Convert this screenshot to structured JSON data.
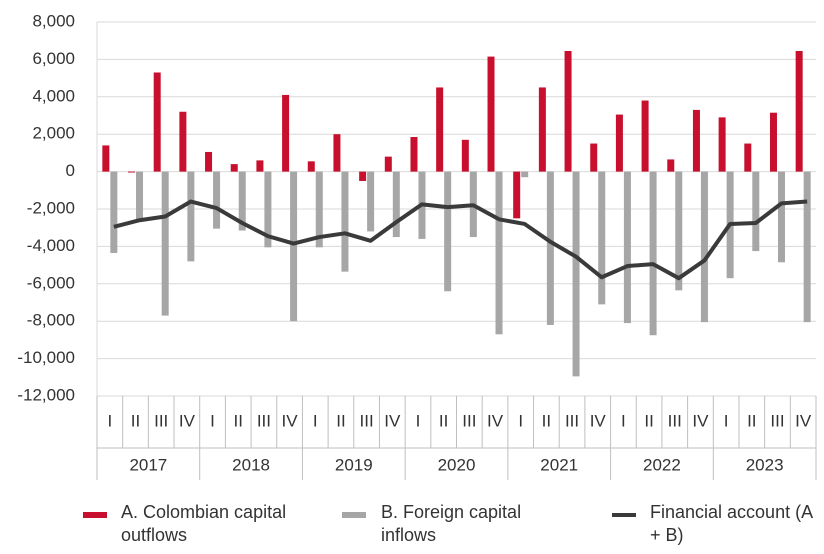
{
  "chart_data": {
    "type": "bar_line",
    "categories": [
      "I",
      "II",
      "III",
      "IV",
      "I",
      "II",
      "III",
      "IV",
      "I",
      "II",
      "III",
      "IV",
      "I",
      "II",
      "III",
      "IV",
      "I",
      "II",
      "III",
      "IV",
      "I",
      "II",
      "III",
      "IV",
      "I",
      "II",
      "III",
      "IV"
    ],
    "groups": [
      "2017",
      "2018",
      "2019",
      "2020",
      "2021",
      "2022",
      "2023"
    ],
    "series": [
      {
        "name": "A. Colombian capital outflows",
        "color": "#c8102e",
        "kind": "bar",
        "values": [
          1400,
          -50,
          5300,
          3200,
          1050,
          400,
          600,
          4100,
          550,
          2000,
          -500,
          800,
          1850,
          4500,
          1700,
          6150,
          -2500,
          4500,
          6450,
          1500,
          3050,
          3800,
          650,
          3300,
          2900,
          1500,
          3150,
          6450
        ]
      },
      {
        "name": "B. Foreign capital inflows",
        "color": "#a6a6a6",
        "kind": "bar",
        "values": [
          -4350,
          -2550,
          -7700,
          -4800,
          -3050,
          -3150,
          -4050,
          -8000,
          -4050,
          -5350,
          -3200,
          -3500,
          -3600,
          -6400,
          -3500,
          -8700,
          -300,
          -8200,
          -10950,
          -7100,
          -8100,
          -8750,
          -6350,
          -8050,
          -5700,
          -4250,
          -4850,
          -8050
        ]
      },
      {
        "name": "Financial account (A + B)",
        "color": "#3a3a3a",
        "kind": "line",
        "values": [
          -2950,
          -2600,
          -2400,
          -1600,
          -1950,
          -2750,
          -3450,
          -3850,
          -3500,
          -3300,
          -3700,
          -2700,
          -1750,
          -1900,
          -1800,
          -2550,
          -2800,
          -3750,
          -4550,
          -5650,
          -5050,
          -4950,
          -5700,
          -4750,
          -2800,
          -2750,
          -1700,
          -1600
        ]
      }
    ],
    "ylim": [
      -12000,
      8000
    ],
    "yticks": [
      {
        "value": -12000,
        "label": "-12,000"
      },
      {
        "value": -10000,
        "label": "-10,000"
      },
      {
        "value": -8000,
        "label": "-8,000"
      },
      {
        "value": -6000,
        "label": "-6,000"
      },
      {
        "value": -4000,
        "label": "-4,000"
      },
      {
        "value": -2000,
        "label": "-2,000"
      },
      0,
      {
        "value": 2000,
        "label": "2,000"
      },
      {
        "value": 4000,
        "label": "4,000"
      },
      {
        "value": 6000,
        "label": "6,000"
      },
      {
        "value": 8000,
        "label": "8,000"
      }
    ],
    "grid": true
  }
}
